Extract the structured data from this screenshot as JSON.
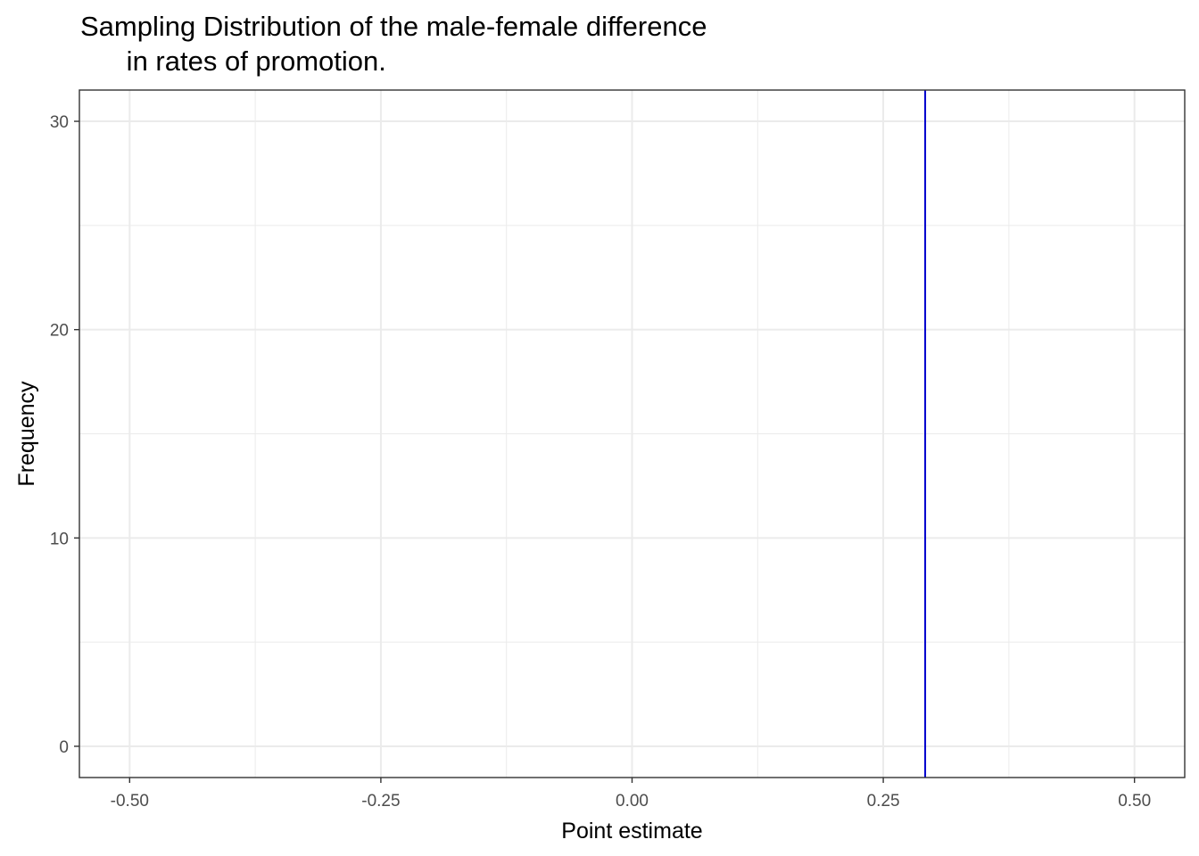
{
  "chart_data": {
    "type": "histogram",
    "title": "Sampling Distribution of the male-female difference\n      in rates of promotion.",
    "xlabel": "Point estimate",
    "ylabel": "Frequency",
    "xlim": [
      -0.55,
      0.55
    ],
    "ylim": [
      -1.5,
      31.5
    ],
    "x_ticks": [
      -0.5,
      -0.25,
      0.0,
      0.25,
      0.5
    ],
    "x_tick_labels": [
      "-0.50",
      "-0.25",
      "0.00",
      "0.25",
      "0.50"
    ],
    "y_ticks": [
      0,
      10,
      20,
      30
    ],
    "y_tick_labels": [
      "0",
      "10",
      "20",
      "30"
    ],
    "x_minor": [
      -0.375,
      -0.125,
      0.125,
      0.375
    ],
    "y_minor": [
      5,
      15,
      25
    ],
    "bins": [],
    "vline": {
      "x": 0.2917,
      "color": "#0000cd"
    },
    "grid": true
  },
  "colors": {
    "grid": "#ebebeb",
    "panel_border": "#333333",
    "tick": "#333333"
  }
}
